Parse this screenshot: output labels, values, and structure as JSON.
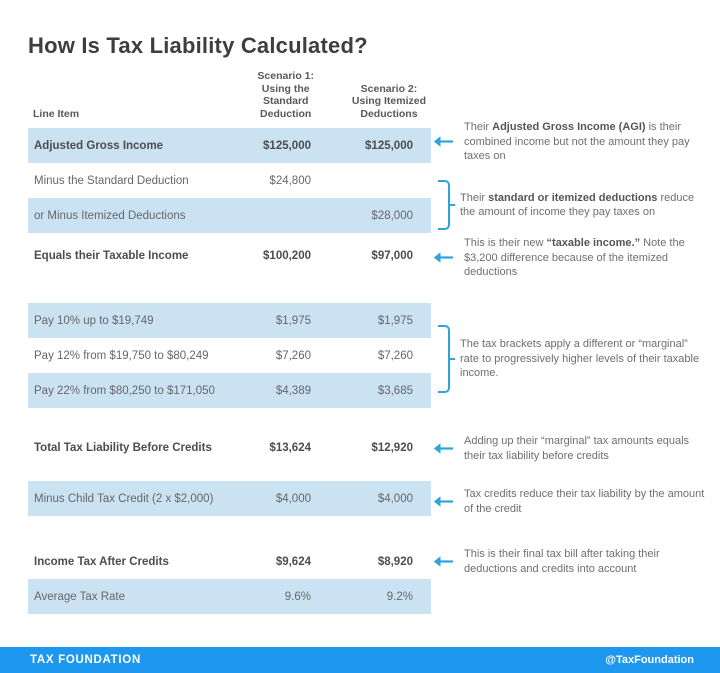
{
  "title": "How Is Tax Liability Calculated?",
  "colors": {
    "row_highlight": "#cbe2f3",
    "accent": "#2fa3dc",
    "footer_bg": "#1e97ee"
  },
  "table": {
    "headers": {
      "line_item": "Line Item",
      "scenario1": "Scenario 1:\nUsing the\nStandard\nDeduction",
      "scenario2": "Scenario 2:\nUsing Itemized\nDeductions"
    },
    "rows": [
      {
        "label": "Adjusted Gross Income",
        "s1": "$125,000",
        "s2": "$125,000"
      },
      {
        "label": "Minus the Standard Deduction",
        "s1": "$24,800",
        "s2": ""
      },
      {
        "label": "or Minus Itemized Deductions",
        "s1": "",
        "s2": "$28,000"
      },
      {
        "label": "Equals their Taxable Income",
        "s1": "$100,200",
        "s2": "$97,000"
      },
      {
        "label": "Pay 10% up to $19,749",
        "s1": "$1,975",
        "s2": "$1,975"
      },
      {
        "label": "Pay 12% from $19,750 to $80,249",
        "s1": "$7,260",
        "s2": "$7,260"
      },
      {
        "label": "Pay 22% from $80,250 to $171,050",
        "s1": "$4,389",
        "s2": "$3,685"
      },
      {
        "label": "Total Tax Liability Before Credits",
        "s1": "$13,624",
        "s2": "$12,920"
      },
      {
        "label": "Minus Child Tax Credit (2 x $2,000)",
        "s1": "$4,000",
        "s2": "$4,000"
      },
      {
        "label": "Income Tax After Credits",
        "s1": "$9,624",
        "s2": "$8,920"
      },
      {
        "label": "Average Tax Rate",
        "s1": "9.6%",
        "s2": "9.2%"
      }
    ]
  },
  "annotations": [
    {
      "marker": "arrow-left",
      "segments": [
        {
          "text": "Their ",
          "bold": false
        },
        {
          "text": "Adjusted Gross Income (AGI)",
          "bold": true
        },
        {
          "text": " is their combined income but not the amount they pay taxes on",
          "bold": false
        }
      ]
    },
    {
      "marker": "bracket",
      "segments": [
        {
          "text": "Their ",
          "bold": false
        },
        {
          "text": "standard or itemized deductions",
          "bold": true
        },
        {
          "text": " reduce the amount of income they pay taxes on",
          "bold": false
        }
      ]
    },
    {
      "marker": "arrow-left",
      "segments": [
        {
          "text": "This is their new ",
          "bold": false
        },
        {
          "text": "“taxable income.”",
          "bold": true
        },
        {
          "text": " Note the $3,200 difference because of the itemized deductions",
          "bold": false
        }
      ]
    },
    {
      "marker": "bracket",
      "segments": [
        {
          "text": "The tax brackets apply a different or “marginal” rate to progressively higher levels of their taxable income.",
          "bold": false
        }
      ]
    },
    {
      "marker": "arrow-left",
      "segments": [
        {
          "text": "Adding up their “marginal” tax amounts equals their tax liability before credits",
          "bold": false
        }
      ]
    },
    {
      "marker": "arrow-left",
      "segments": [
        {
          "text": "Tax credits reduce their tax liability by the amount of the credit",
          "bold": false
        }
      ]
    },
    {
      "marker": "arrow-left",
      "segments": [
        {
          "text": "This is their final tax bill after taking their deductions and credits into account",
          "bold": false
        }
      ]
    }
  ],
  "footer": {
    "brand": "TAX FOUNDATION",
    "handle": "@TaxFoundation"
  },
  "chart_data": {
    "type": "table",
    "title": "How Is Tax Liability Calculated?",
    "columns": [
      "Line Item",
      "Scenario 1: Using the Standard Deduction",
      "Scenario 2: Using Itemized Deductions"
    ],
    "rows": [
      [
        "Adjusted Gross Income",
        "$125,000",
        "$125,000"
      ],
      [
        "Minus the Standard Deduction",
        "$24,800",
        ""
      ],
      [
        "or Minus Itemized Deductions",
        "",
        "$28,000"
      ],
      [
        "Equals their Taxable Income",
        "$100,200",
        "$97,000"
      ],
      [
        "Pay 10% up to $19,749",
        "$1,975",
        "$1,975"
      ],
      [
        "Pay 12% from $19,750 to $80,249",
        "$7,260",
        "$7,260"
      ],
      [
        "Pay 22% from $80,250 to $171,050",
        "$4,389",
        "$3,685"
      ],
      [
        "Total Tax Liability Before Credits",
        "$13,624",
        "$12,920"
      ],
      [
        "Minus Child Tax Credit (2 x $2,000)",
        "$4,000",
        "$4,000"
      ],
      [
        "Income Tax After Credits",
        "$9,624",
        "$8,920"
      ],
      [
        "Average Tax Rate",
        "9.6%",
        "9.2%"
      ]
    ]
  }
}
